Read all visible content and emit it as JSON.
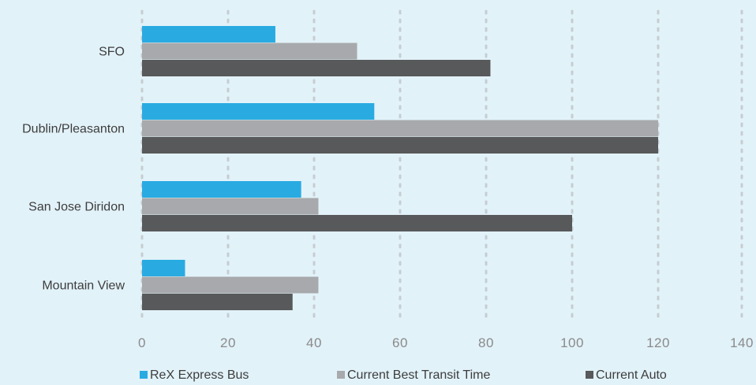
{
  "chart_data": {
    "type": "bar",
    "orientation": "horizontal",
    "categories": [
      "SFO",
      "Dublin/Pleasanton",
      "San Jose Diridon",
      "Mountain View"
    ],
    "series": [
      {
        "name": "ReX Express Bus",
        "color": "#29abe2",
        "values": [
          31,
          54,
          37,
          10
        ]
      },
      {
        "name": "Current Best Transit Time",
        "color": "#a7a9ac",
        "values": [
          50,
          120,
          41,
          41
        ]
      },
      {
        "name": "Current Auto",
        "color": "#58595b",
        "values": [
          81,
          120,
          100,
          35
        ]
      }
    ],
    "xlim": [
      0,
      140
    ],
    "xticks": [
      "0",
      "20",
      "40",
      "60",
      "80",
      "100",
      "120",
      "140"
    ],
    "grid": "vertical dotted",
    "legend_position": "bottom"
  }
}
